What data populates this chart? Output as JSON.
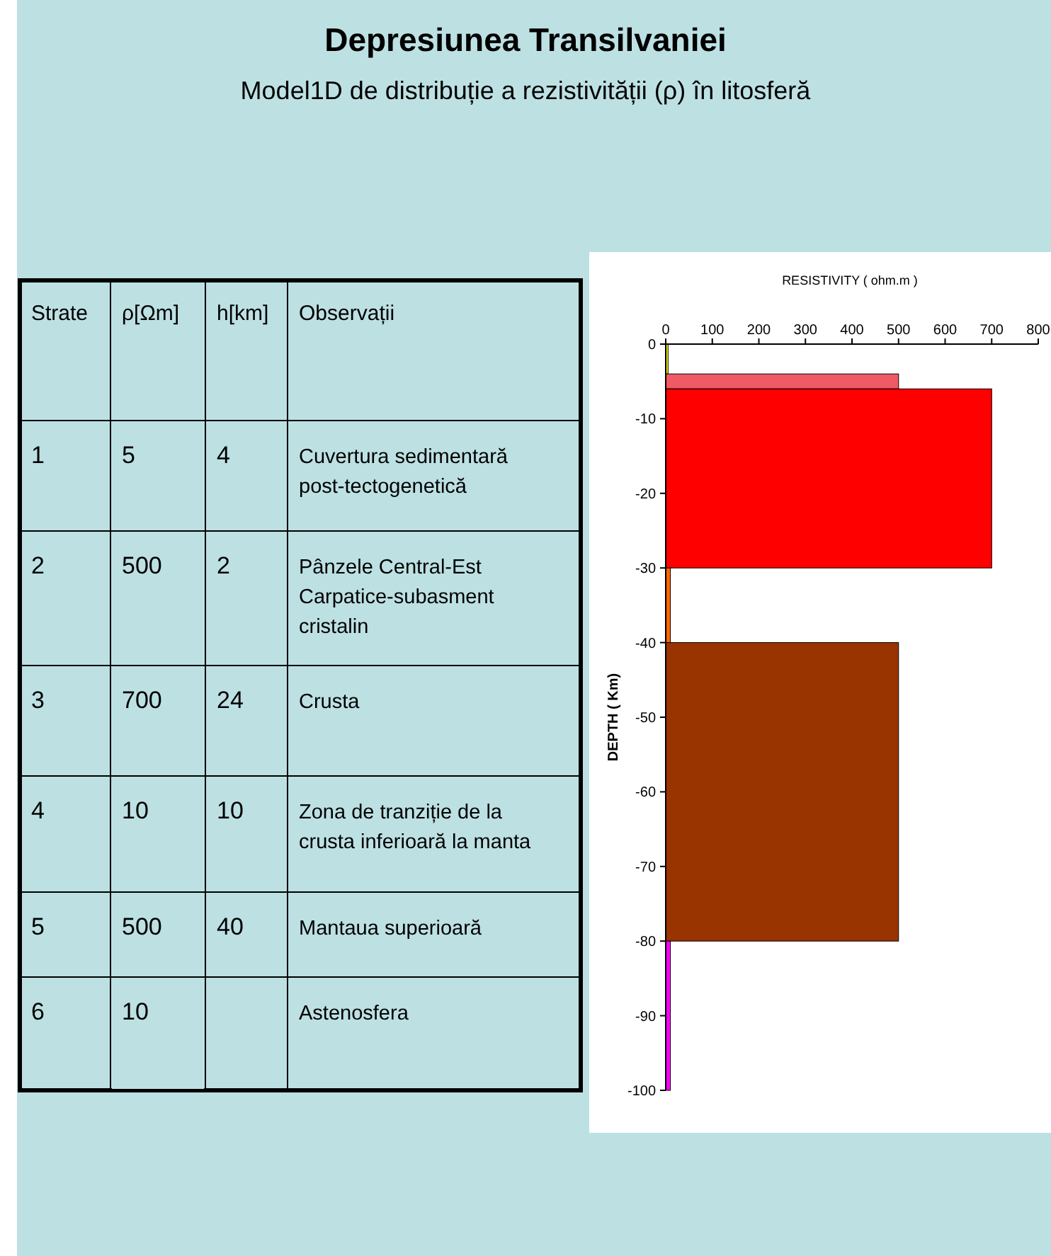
{
  "chart_data": [
    {
      "type": "heatmap",
      "title": "Depresiunea Transilvaniei",
      "subtitle": "Model1D de distribuție a rezistivității (ρ) în litosferă",
      "ylabel": "Strate",
      "y2label": "Observații",
      "categories": [
        "ρ[Ωm]",
        "h[km]"
      ],
      "y_categories": [
        "1",
        "2",
        "3",
        "4",
        "5",
        "6"
      ],
      "y2_categories": [
        "Cuvertura sedimentară post-tectogenetică",
        "Pânzele Central-Est Carpatice-subasment cristalin",
        "Crusta",
        "Zona de tranziție de la crusta inferioară la manta",
        "Mantaua superioară",
        "Astenosfera"
      ],
      "cells": [
        [
          5,
          4
        ],
        [
          500,
          2
        ],
        [
          700,
          24
        ],
        [
          10,
          10
        ],
        [
          500,
          40
        ],
        [
          10,
          null
        ]
      ],
      "data_labels": true
    },
    {
      "type": "histogram",
      "orientation": "horizontal",
      "xlabel": "RESISTIVITY ( ohm.m )",
      "ylabel": "DEPTH ( Km)",
      "bins": [
        0,
        -4,
        -6,
        -30,
        -40,
        -80,
        -100
      ],
      "values": [
        5,
        500,
        700,
        10,
        500,
        10
      ],
      "colors": [
        "#ffff00",
        "#f05a64",
        "#ff0000",
        "#ff6600",
        "#993300",
        "#ff00ff"
      ],
      "xlim": [
        0,
        800
      ],
      "xticks": [
        0,
        100,
        200,
        300,
        400,
        500,
        600,
        700,
        800
      ],
      "ylim": [
        -100,
        0
      ],
      "yticks": [
        0,
        -10,
        -20,
        -30,
        -40,
        -50,
        -60,
        -70,
        -80,
        -90,
        -100
      ]
    }
  ]
}
